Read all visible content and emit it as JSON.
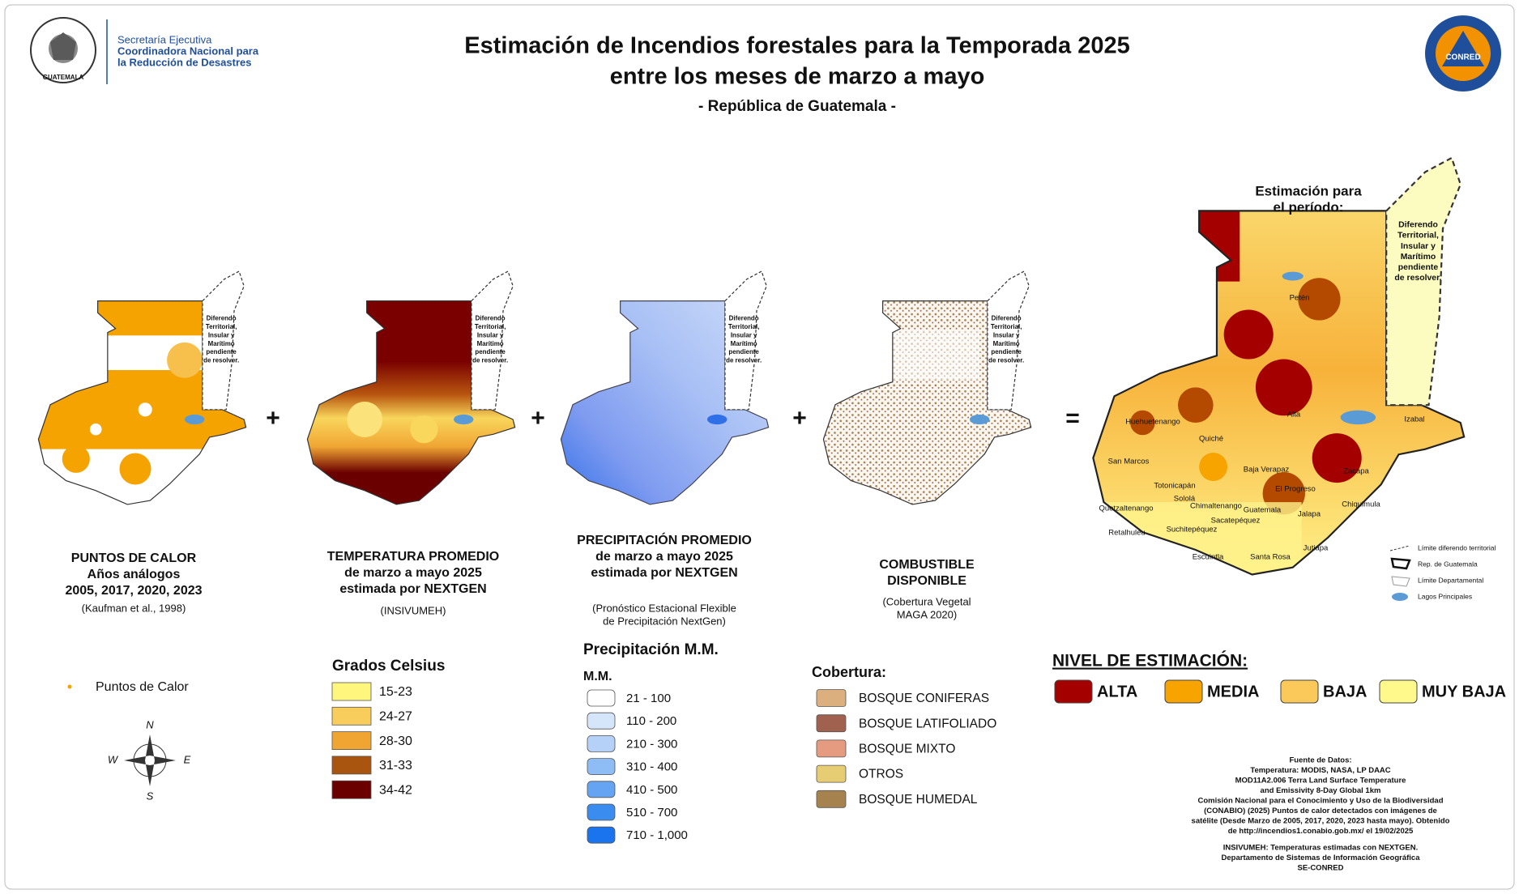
{
  "header": {
    "org": [
      "Secretaría Ejecutiva",
      "Coordinadora Nacional para",
      "la Reducción de Desastres"
    ],
    "seal_text": "GUATEMALA",
    "title": [
      "Estimación de Incendios forestales para la Temporada 2025",
      "entre los meses de marzo a mayo"
    ],
    "subtitle": "- República de Guatemala -",
    "logo": "CONRED"
  },
  "panels": [
    {
      "caption": [
        "PUNTOS DE CALOR",
        "Años análogos",
        "2005, 2017, 2020, 2023"
      ],
      "source": [
        "(Kaufman et al., 1998)"
      ],
      "note": [
        "Diferendo",
        "Territorial,",
        "Insular y",
        "Marítimo",
        "pendiente",
        "de resolver."
      ]
    },
    {
      "caption": [
        "TEMPERATURA PROMEDIO",
        "de marzo a mayo 2025",
        "estimada por NEXTGEN"
      ],
      "source": [
        "(INSIVUMEH)"
      ],
      "note": [
        "Diferendo",
        "Territorial,",
        "Insular y",
        "Marítimo",
        "pendiente",
        "de resolver."
      ]
    },
    {
      "caption": [
        "PRECIPITACIÓN PROMEDIO",
        "de marzo a mayo 2025",
        "estimada por NEXTGEN"
      ],
      "source": [
        "(Pronóstico Estacional Flexible",
        "de Precipitación NextGen)"
      ],
      "note": [
        "Diferendo",
        "Territorial,",
        "Insular y",
        "Marítimo",
        "pendiente",
        "de resolver."
      ]
    },
    {
      "caption": [
        "COMBUSTIBLE",
        "DISPONIBLE"
      ],
      "source": [
        "(Cobertura Vegetal",
        "MAGA 2020)"
      ],
      "note": [
        "Diferendo",
        "Territorial,",
        "Insular y",
        "Marítimo",
        "pendiente",
        "de resolver."
      ]
    }
  ],
  "operators": [
    "+",
    "+",
    "+",
    "="
  ],
  "legends": {
    "hotspots": {
      "label": "Puntos de Calor",
      "color": "#f5a300"
    },
    "compass": [
      "N",
      "E",
      "S",
      "W"
    ],
    "temperature": {
      "title": "Grados Celsius",
      "items": [
        {
          "label": "15-23",
          "color": "#fff67d"
        },
        {
          "label": "24-27",
          "color": "#f9cd5c"
        },
        {
          "label": "28-30",
          "color": "#f0a533"
        },
        {
          "label": "31-33",
          "color": "#a9540f"
        },
        {
          "label": "34-42",
          "color": "#6b0000"
        }
      ]
    },
    "precipitation": {
      "title": "Precipitación M.M.",
      "unit": "M.M.",
      "items": [
        {
          "label": "21 - 100",
          "color": "#ffffff"
        },
        {
          "label": "110 - 200",
          "color": "#d6e6fa"
        },
        {
          "label": "210 - 300",
          "color": "#b5d1f7"
        },
        {
          "label": "310 - 400",
          "color": "#8ebcf5"
        },
        {
          "label": "410 - 500",
          "color": "#64a4f2"
        },
        {
          "label": "510 - 700",
          "color": "#3b8cef"
        },
        {
          "label": "710 - 1,000",
          "color": "#1a74ee"
        }
      ]
    },
    "cover": {
      "title": "Cobertura:",
      "items": [
        {
          "label": "BOSQUE CONIFERAS",
          "color": "#dcb07e"
        },
        {
          "label": "BOSQUE LATIFOLIADO",
          "color": "#a0614f"
        },
        {
          "label": "BOSQUE MIXTO",
          "color": "#e59b7f"
        },
        {
          "label": "OTROS",
          "color": "#e6cc72"
        },
        {
          "label": "BOSQUE HUMEDAL",
          "color": "#a6834e"
        }
      ]
    },
    "level": {
      "title": "NIVEL DE ESTIMACIÓN:",
      "items": [
        {
          "label": "ALTA",
          "color": "#a50000"
        },
        {
          "label": "MEDIA",
          "color": "#f7a300"
        },
        {
          "label": "BAJA",
          "color": "#fbc95a"
        },
        {
          "label": "MUY BAJA",
          "color": "#fff88a"
        }
      ]
    }
  },
  "result": {
    "heading": [
      "Estimación para",
      "el período:"
    ],
    "note": [
      "Diferendo",
      "Territorial,",
      "Insular y",
      "Marítimo",
      "pendiente",
      "de resolver."
    ],
    "places": [
      "Petén",
      "Alta",
      "Izabal",
      "Huehuetenango",
      "Quiché",
      "San Marcos",
      "Baja Verapaz",
      "Zacapa",
      "Totonicapán",
      "El Progreso",
      "Sololá",
      "Chimaltenango",
      "Quetzaltenango",
      "Guatemala",
      "Chiquimula",
      "Jalapa",
      "Sacatepéquez",
      "Retalhuleu",
      "Suchitepéquez",
      "Jutiapa",
      "Escuintla",
      "Santa Rosa"
    ],
    "map_legend": [
      "Límite diferendo territorial",
      "Rep. de Guatemala",
      "Límite Departamental",
      "Lagos Principales"
    ]
  },
  "sources": [
    "Fuente de Datos:",
    "Temperatura: MODIS, NASA, LP DAAC",
    "MOD11A2.006 Terra Land Surface Temperature",
    "and Emissivity 8-Day Global 1km",
    "Comisión Nacional para el Conocimiento y Uso de la Biodiversidad",
    "(CONABIO) (2025) Puntos de calor detectados con imágenes de",
    "satélite (Desde Marzo de  2005, 2017, 2020, 2023 hasta mayo). Obtenido",
    "de http://incendios1.conabio.gob.mx/ el 19/02/2025",
    "INSIVUMEH: Temperaturas estimadas con NEXTGEN.",
    "Departamento de Sistemas de Información Geográfica",
    "SE-CONRED"
  ]
}
